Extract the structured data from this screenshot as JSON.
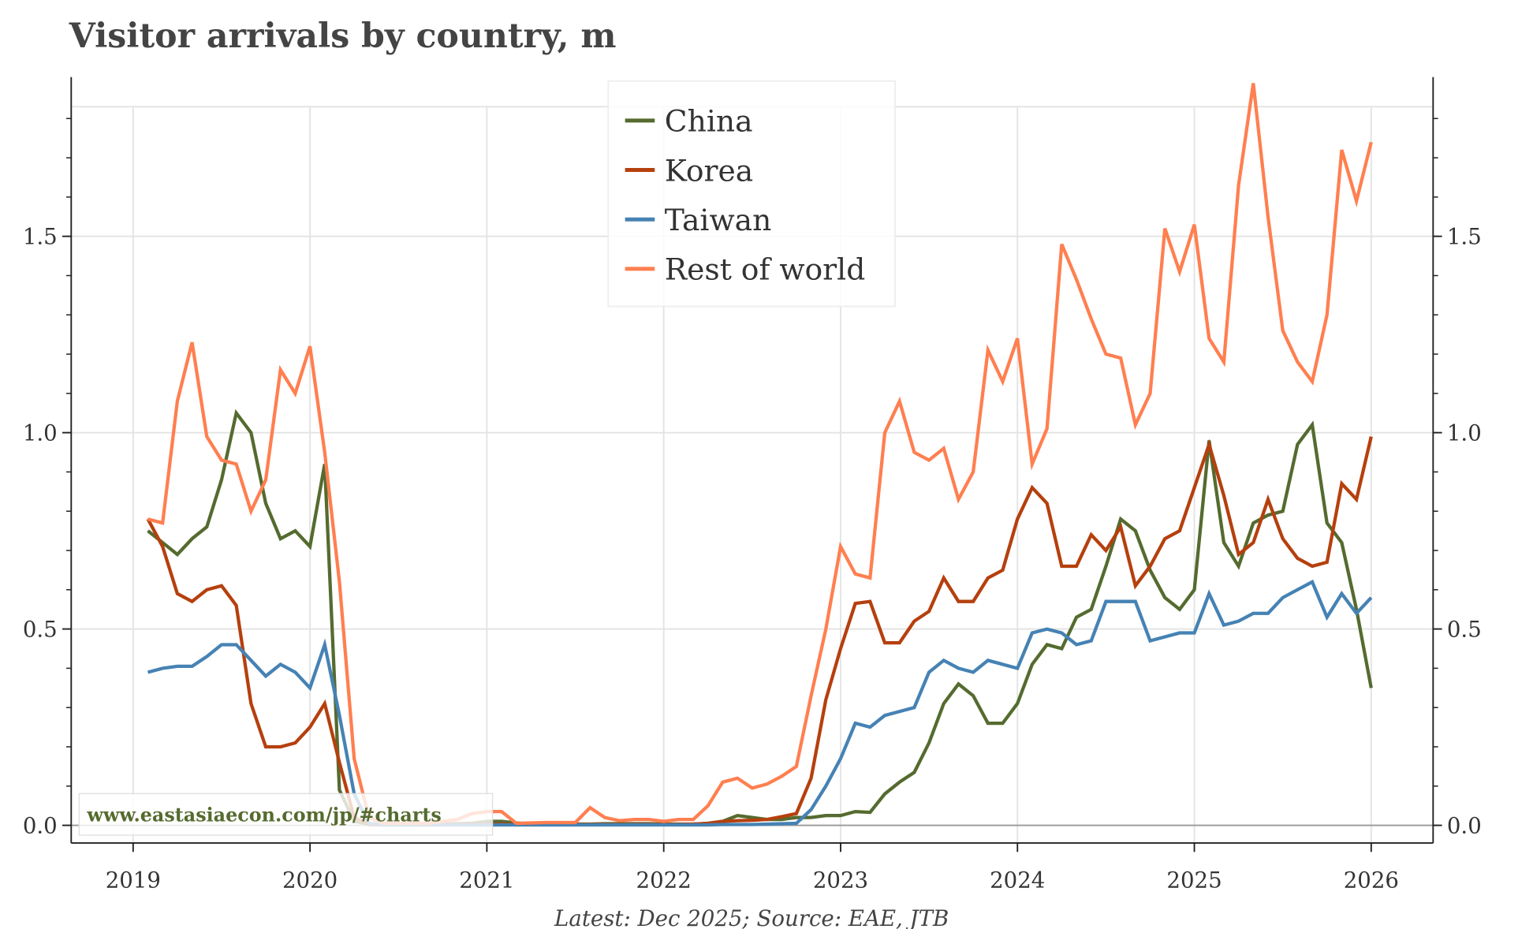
{
  "chart_data": {
    "type": "line",
    "title": "Visitor arrivals by country, m",
    "source": "Latest: Dec 2025; Source: EAE, JTB",
    "watermark": "www.eastasiaecon.com/jp/#charts",
    "xlim": [
      2018.65,
      2026.35
    ],
    "ylim": [
      -0.045,
      1.83
    ],
    "x_ticks": [
      "2019",
      "2020",
      "2021",
      "2022",
      "2023",
      "2024",
      "2025",
      "2026"
    ],
    "y_ticks": [
      "0.0",
      "0.5",
      "1.0",
      "1.5"
    ],
    "y_minor_step": 0.1,
    "grid": true,
    "legend_position": "top-center",
    "y_axis_both_sides": true,
    "dates": [
      "2019-01",
      "2019-02",
      "2019-03",
      "2019-04",
      "2019-05",
      "2019-06",
      "2019-07",
      "2019-08",
      "2019-09",
      "2019-10",
      "2019-11",
      "2019-12",
      "2020-01",
      "2020-02",
      "2020-03",
      "2020-04",
      "2020-05",
      "2020-06",
      "2020-07",
      "2020-08",
      "2020-09",
      "2020-10",
      "2020-11",
      "2020-12",
      "2021-01",
      "2021-02",
      "2021-03",
      "2021-04",
      "2021-05",
      "2021-06",
      "2021-07",
      "2021-08",
      "2021-09",
      "2021-10",
      "2021-11",
      "2021-12",
      "2022-01",
      "2022-02",
      "2022-03",
      "2022-04",
      "2022-05",
      "2022-06",
      "2022-07",
      "2022-08",
      "2022-09",
      "2022-10",
      "2022-11",
      "2022-12",
      "2023-01",
      "2023-02",
      "2023-03",
      "2023-04",
      "2023-05",
      "2023-06",
      "2023-07",
      "2023-08",
      "2023-09",
      "2023-10",
      "2023-11",
      "2023-12",
      "2024-01",
      "2024-02",
      "2024-03",
      "2024-04",
      "2024-05",
      "2024-06",
      "2024-07",
      "2024-08",
      "2024-09",
      "2024-10",
      "2024-11",
      "2024-12",
      "2025-01",
      "2025-02",
      "2025-03",
      "2025-04",
      "2025-05",
      "2025-06",
      "2025-07",
      "2025-08",
      "2025-09",
      "2025-10",
      "2025-11",
      "2025-12"
    ],
    "series": [
      {
        "name": "China",
        "color": "#556B2F",
        "values": [
          0.75,
          0.72,
          0.69,
          0.73,
          0.76,
          0.88,
          1.05,
          1.0,
          0.82,
          0.73,
          0.75,
          0.71,
          0.92,
          0.09,
          0.01,
          0.003,
          0.002,
          0.002,
          0.002,
          0.003,
          0.003,
          0.004,
          0.005,
          0.01,
          0.01,
          0.006,
          0.003,
          0.003,
          0.003,
          0.003,
          0.003,
          0.004,
          0.004,
          0.004,
          0.004,
          0.003,
          0.003,
          0.003,
          0.005,
          0.01,
          0.025,
          0.02,
          0.015,
          0.015,
          0.02,
          0.02,
          0.025,
          0.025,
          0.035,
          0.033,
          0.08,
          0.11,
          0.135,
          0.21,
          0.31,
          0.36,
          0.33,
          0.26,
          0.26,
          0.31,
          0.41,
          0.46,
          0.45,
          0.53,
          0.55,
          0.66,
          0.78,
          0.75,
          0.65,
          0.58,
          0.55,
          0.6,
          0.98,
          0.72,
          0.66,
          0.77,
          0.79,
          0.8,
          0.97,
          1.02,
          0.77,
          0.72,
          0.55,
          0.35
        ]
      },
      {
        "name": "Korea",
        "color": "#B5400E",
        "values": [
          0.78,
          0.71,
          0.59,
          0.57,
          0.6,
          0.61,
          0.56,
          0.31,
          0.2,
          0.2,
          0.21,
          0.25,
          0.31,
          0.16,
          0.02,
          0.002,
          0.001,
          0.001,
          0.001,
          0.001,
          0.002,
          0.002,
          0.003,
          0.003,
          0.003,
          0.002,
          0.002,
          0.002,
          0.002,
          0.002,
          0.002,
          0.002,
          0.002,
          0.002,
          0.002,
          0.002,
          0.002,
          0.003,
          0.005,
          0.01,
          0.012,
          0.013,
          0.015,
          0.022,
          0.03,
          0.12,
          0.32,
          0.45,
          0.565,
          0.57,
          0.465,
          0.465,
          0.52,
          0.545,
          0.63,
          0.57,
          0.57,
          0.63,
          0.65,
          0.78,
          0.86,
          0.82,
          0.66,
          0.66,
          0.74,
          0.7,
          0.76,
          0.61,
          0.66,
          0.73,
          0.75,
          0.86,
          0.97,
          0.84,
          0.69,
          0.72,
          0.83,
          0.73,
          0.68,
          0.66,
          0.67,
          0.87,
          0.83,
          0.99
        ]
      },
      {
        "name": "Taiwan",
        "color": "#4682B4",
        "values": [
          0.39,
          0.4,
          0.405,
          0.405,
          0.43,
          0.46,
          0.46,
          0.42,
          0.38,
          0.41,
          0.39,
          0.35,
          0.46,
          0.28,
          0.08,
          0.005,
          0.001,
          0.001,
          0.001,
          0.001,
          0.001,
          0.001,
          0.001,
          0.001,
          0.001,
          0.001,
          0.001,
          0.001,
          0.001,
          0.001,
          0.001,
          0.001,
          0.001,
          0.001,
          0.001,
          0.001,
          0.001,
          0.001,
          0.001,
          0.002,
          0.002,
          0.002,
          0.003,
          0.004,
          0.005,
          0.04,
          0.1,
          0.17,
          0.26,
          0.25,
          0.28,
          0.29,
          0.3,
          0.39,
          0.42,
          0.4,
          0.39,
          0.42,
          0.41,
          0.4,
          0.49,
          0.5,
          0.49,
          0.46,
          0.47,
          0.57,
          0.57,
          0.57,
          0.47,
          0.48,
          0.49,
          0.49,
          0.59,
          0.51,
          0.52,
          0.54,
          0.54,
          0.58,
          0.6,
          0.62,
          0.53,
          0.59,
          0.54,
          0.58
        ]
      },
      {
        "name": "Rest of world",
        "color": "#FF7F50",
        "values": [
          0.78,
          0.77,
          1.08,
          1.23,
          0.99,
          0.93,
          0.92,
          0.8,
          0.88,
          1.16,
          1.1,
          1.22,
          0.95,
          0.62,
          0.17,
          0.02,
          0.005,
          0.005,
          0.005,
          0.005,
          0.01,
          0.015,
          0.03,
          0.035,
          0.035,
          0.005,
          0.006,
          0.007,
          0.007,
          0.007,
          0.045,
          0.02,
          0.012,
          0.015,
          0.015,
          0.01,
          0.015,
          0.015,
          0.05,
          0.11,
          0.12,
          0.095,
          0.105,
          0.125,
          0.15,
          0.33,
          0.5,
          0.71,
          0.64,
          0.63,
          1.0,
          1.08,
          0.95,
          0.93,
          0.96,
          0.83,
          0.9,
          1.21,
          1.13,
          1.24,
          0.92,
          1.01,
          1.48,
          1.39,
          1.29,
          1.2,
          1.19,
          1.02,
          1.1,
          1.52,
          1.41,
          1.53,
          1.24,
          1.18,
          1.63,
          1.89,
          1.55,
          1.26,
          1.18,
          1.13,
          1.3,
          1.72,
          1.59,
          1.74
        ]
      }
    ]
  }
}
